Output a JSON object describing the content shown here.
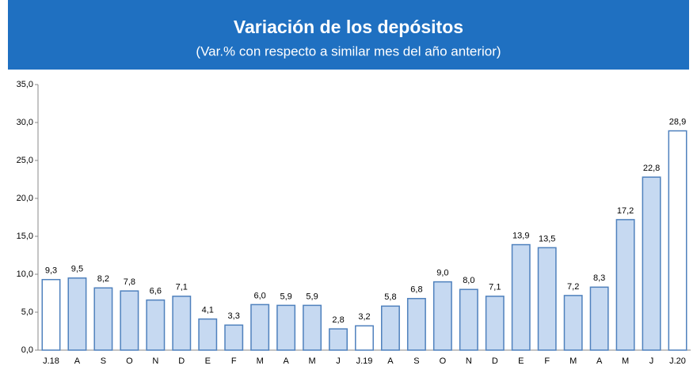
{
  "chart_data": {
    "type": "bar",
    "title": "Variación de los depósitos",
    "subtitle": "(Var.% con respecto a similar mes del año anterior)",
    "categories": [
      "J.18",
      "A",
      "S",
      "O",
      "N",
      "D",
      "E",
      "F",
      "M",
      "A",
      "M",
      "J",
      "J.19",
      "A",
      "S",
      "O",
      "N",
      "D",
      "E",
      "F",
      "M",
      "A",
      "M",
      "J",
      "J.20"
    ],
    "values": [
      9.3,
      9.5,
      8.2,
      7.8,
      6.6,
      7.1,
      4.1,
      3.3,
      6.0,
      5.9,
      5.9,
      2.8,
      3.2,
      5.8,
      6.8,
      9.0,
      8.0,
      7.1,
      13.9,
      13.5,
      7.2,
      8.3,
      17.2,
      22.8,
      28.9
    ],
    "value_labels": [
      "9,3",
      "9,5",
      "8,2",
      "7,8",
      "6,6",
      "7,1",
      "4,1",
      "3,3",
      "6,0",
      "5,9",
      "5,9",
      "2,8",
      "3,2",
      "5,8",
      "6,8",
      "9,0",
      "8,0",
      "7,1",
      "13,9",
      "13,5",
      "7,2",
      "8,3",
      "17,2",
      "22,8",
      "28,9"
    ],
    "colors": [
      "#ffffff",
      "#c6d9f1",
      "#c6d9f1",
      "#c6d9f1",
      "#c6d9f1",
      "#c6d9f1",
      "#c6d9f1",
      "#c6d9f1",
      "#c6d9f1",
      "#c6d9f1",
      "#c6d9f1",
      "#c6d9f1",
      "#ffffff",
      "#c6d9f1",
      "#c6d9f1",
      "#c6d9f1",
      "#c6d9f1",
      "#c6d9f1",
      "#c6d9f1",
      "#c6d9f1",
      "#c6d9f1",
      "#c6d9f1",
      "#c6d9f1",
      "#c6d9f1",
      "#ffffff"
    ],
    "edge_color": "#4f81bd",
    "ylim": [
      0,
      35
    ],
    "yticks": [
      {
        "value": 0,
        "label": "0,0"
      },
      {
        "value": 5,
        "label": "5,0"
      },
      {
        "value": 10,
        "label": "10,0"
      },
      {
        "value": 15,
        "label": "15,0"
      },
      {
        "value": 20,
        "label": "20,0"
      },
      {
        "value": 25,
        "label": "25,0"
      },
      {
        "value": 30,
        "label": "30,0"
      },
      {
        "value": 35,
        "label": "35,0"
      }
    ],
    "grid": false
  }
}
